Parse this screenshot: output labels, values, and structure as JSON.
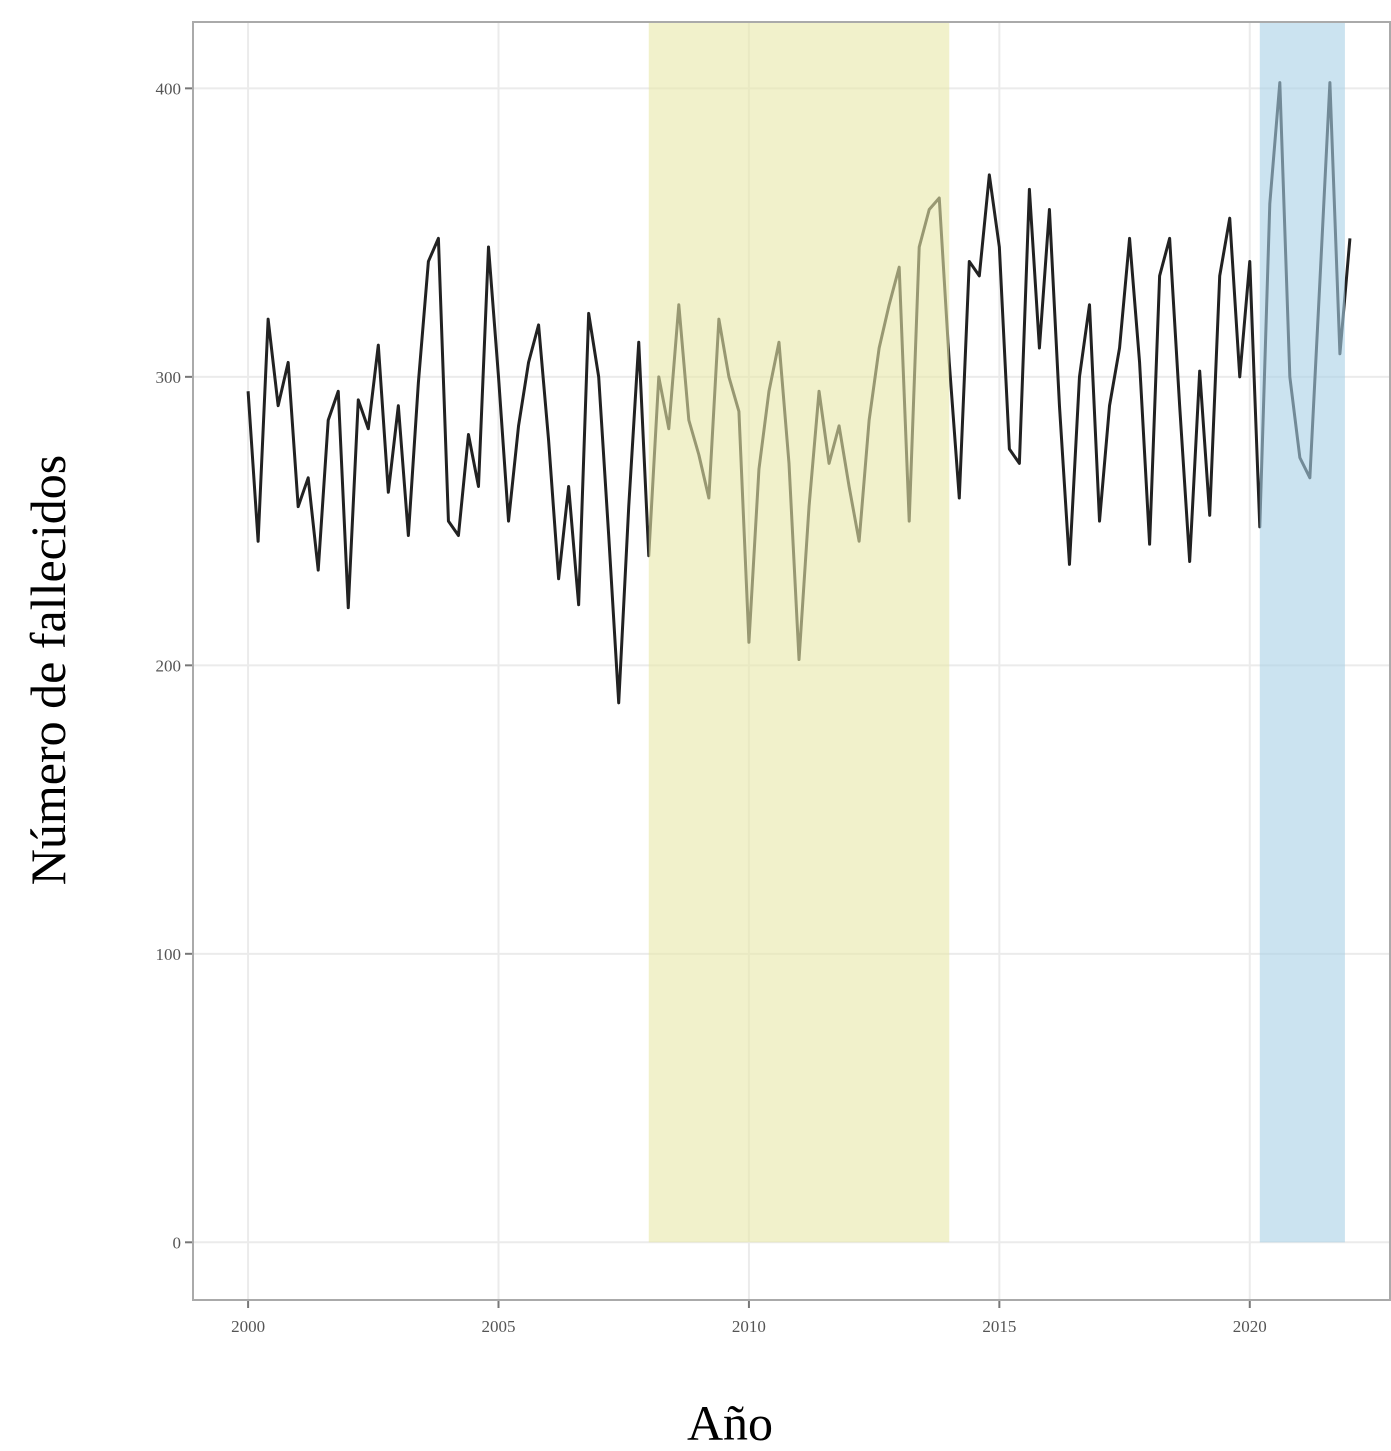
{
  "chart_data": {
    "type": "line",
    "x_label": "Año",
    "y_label": "Número de fallecidos",
    "x": [
      2000,
      2000.2,
      2000.4,
      2000.6,
      2000.8,
      2001,
      2001.2,
      2001.4,
      2001.6,
      2001.8,
      2002,
      2002.2,
      2002.4,
      2002.6,
      2002.8,
      2003,
      2003.2,
      2003.4,
      2003.6,
      2003.8,
      2004,
      2004.2,
      2004.4,
      2004.6,
      2004.8,
      2005,
      2005.2,
      2005.4,
      2005.6,
      2005.8,
      2006,
      2006.2,
      2006.4,
      2006.6,
      2006.8,
      2007,
      2007.2,
      2007.4,
      2007.6,
      2007.8,
      2008,
      2008.2,
      2008.4,
      2008.6,
      2008.8,
      2009,
      2009.2,
      2009.4,
      2009.6,
      2009.8,
      2010,
      2010.2,
      2010.4,
      2010.6,
      2010.8,
      2011,
      2011.2,
      2011.4,
      2011.6,
      2011.8,
      2012,
      2012.2,
      2012.4,
      2012.6,
      2012.8,
      2013,
      2013.2,
      2013.4,
      2013.6,
      2013.8,
      2014,
      2014.2,
      2014.4,
      2014.6,
      2014.8,
      2015,
      2015.2,
      2015.4,
      2015.6,
      2015.8,
      2016,
      2016.2,
      2016.4,
      2016.6,
      2016.8,
      2017,
      2017.2,
      2017.4,
      2017.6,
      2017.8,
      2018,
      2018.2,
      2018.4,
      2018.6,
      2018.8,
      2019,
      2019.2,
      2019.4,
      2019.6,
      2019.8,
      2020,
      2020.2,
      2020.4,
      2020.6,
      2020.8,
      2021,
      2021.2,
      2021.4,
      2021.6,
      2021.8,
      2022
    ],
    "series": [
      {
        "color": "#222222",
        "values": [
          295,
          243,
          320,
          290,
          305,
          255,
          265,
          233,
          285,
          295,
          220,
          292,
          282,
          311,
          260,
          290,
          245,
          298,
          340,
          348,
          250,
          245,
          280,
          262,
          345,
          300,
          250,
          283,
          305,
          318,
          278,
          230,
          262,
          221,
          322,
          300,
          245,
          187,
          255,
          312,
          238,
          300,
          282,
          325,
          285,
          273,
          258,
          320,
          300,
          288,
          208,
          268,
          295,
          312,
          270,
          202,
          255,
          295,
          270,
          283,
          262,
          243,
          285,
          310,
          325,
          338,
          250,
          345,
          358,
          362,
          305,
          258,
          340,
          335,
          370,
          345,
          275,
          270,
          365,
          310,
          358,
          290,
          235,
          300,
          325,
          250,
          290,
          310,
          348,
          305,
          242,
          335,
          348,
          290,
          236,
          302,
          252,
          335,
          355,
          300,
          340,
          248,
          360,
          402,
          300,
          272,
          265,
          333,
          402,
          308,
          348
        ]
      }
    ],
    "bands": [
      {
        "x0": 2008,
        "x1": 2014,
        "y0": 0,
        "color": "#e8e8a8"
      },
      {
        "x0": 2020.2,
        "x1": 2021.9,
        "y0": 0,
        "color": "#a8d0e6"
      }
    ],
    "xlim": [
      1998.9,
      2022.8
    ],
    "ylim": [
      -20,
      423
    ],
    "xticks": [
      2000,
      2005,
      2010,
      2015,
      2020
    ],
    "yticks": [
      0,
      100,
      200,
      300,
      400
    ],
    "grid": true
  }
}
